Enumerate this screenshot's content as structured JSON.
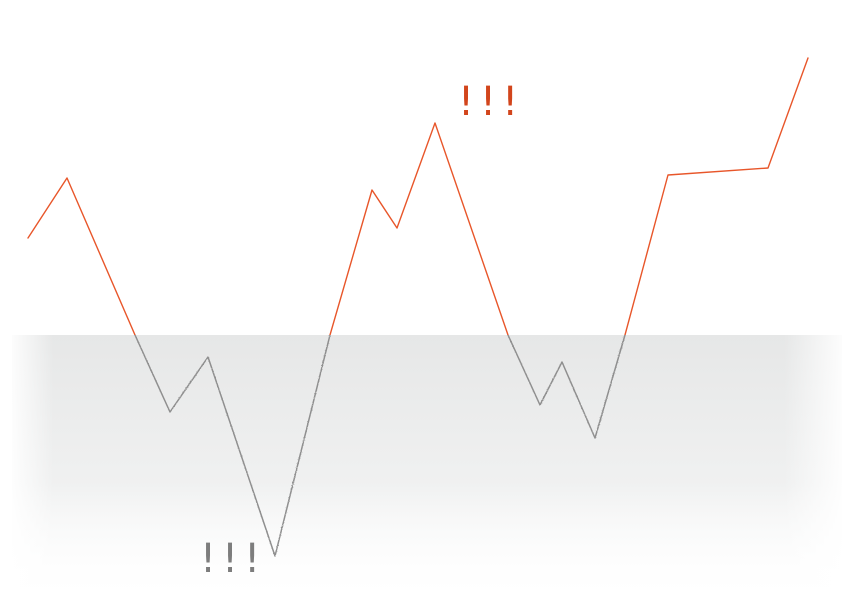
{
  "colors": {
    "above": "#e8562a",
    "below": "#8f8f8f",
    "baseline": "#9a9a9a",
    "shade": "#e9eaea",
    "exclaim_above": "#d2451c",
    "exclaim_below": "#7d7d7d"
  },
  "waveform": [
    [
      28,
      238
    ],
    [
      67,
      178
    ],
    [
      135,
      335
    ],
    [
      170,
      412
    ],
    [
      208,
      357
    ],
    [
      275,
      556
    ],
    [
      330,
      335
    ],
    [
      372,
      190
    ],
    [
      397,
      228
    ],
    [
      435,
      123
    ],
    [
      508,
      335
    ],
    [
      540,
      405
    ],
    [
      562,
      362
    ],
    [
      595,
      438
    ],
    [
      625,
      335
    ],
    [
      668,
      175
    ],
    [
      768,
      168
    ],
    [
      808,
      58
    ]
  ],
  "baseline_y": 335,
  "exclaim_above": "!!!",
  "exclaim_below": "!!!"
}
